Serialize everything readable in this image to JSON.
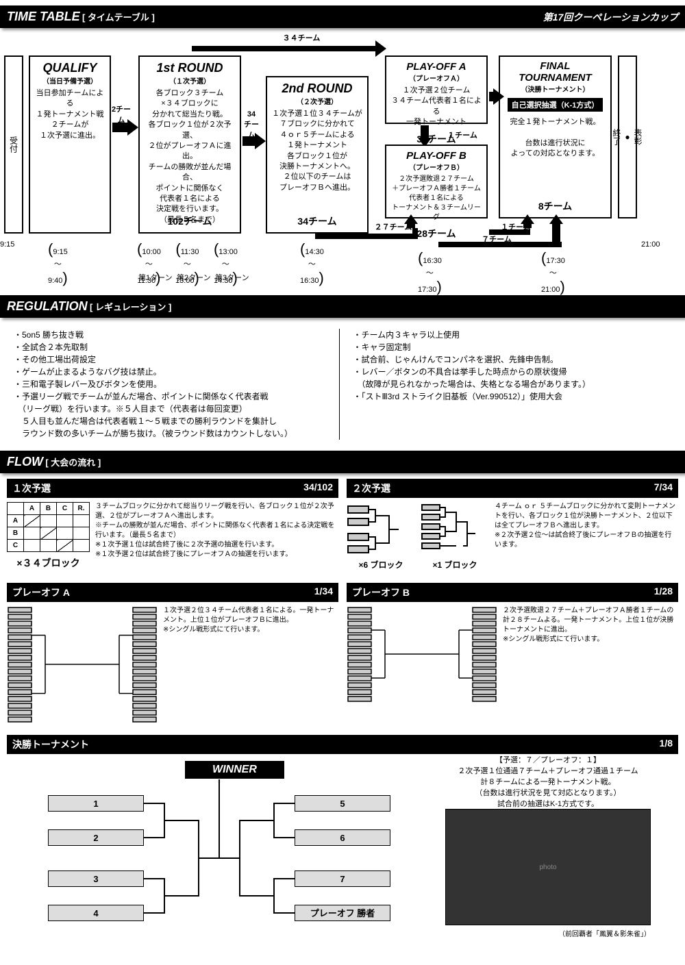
{
  "header1": {
    "en": "TIME TABLE",
    "jp": "[ タイムテーブル ]",
    "right": "第17回クーペレーションカップ"
  },
  "header2": {
    "en": "REGULATION",
    "jp": "[ レギュレーション ]"
  },
  "header3": {
    "en": "FLOW",
    "jp": "[ 大会の流れ ]"
  },
  "reception": "受付",
  "awards": "表彰\n●\n終了",
  "boxes": {
    "qualify": {
      "title": "QUALIFY",
      "sub": "（当日予備予選）",
      "body": "当日参加チームによる\n１発トーナメント戦\n２チームが\n１次予選に進出。"
    },
    "round1": {
      "title": "1st ROUND",
      "sub": "（１次予選）",
      "body": "各ブロック３チーム\n×３４ブロックに\n分かれて総当たり戦。\n各ブロック１位が２次予選、\n２位がプレーオフＡに進出。\nチームの勝敗が並んだ場合、\nポイントに関係なく\n代表者１名による\n決定戦を行います。\n（最長５名まで）",
      "footer": "102チーム"
    },
    "round2": {
      "title": "2nd ROUND",
      "sub": "（２次予選）",
      "body": "１次予選１位３４チームが\n７ブロックに分かれて\n４ｏｒ５チームによる\n１発トーナメント\n各ブロック１位が\n決勝トーナメントへ。\n２位以下のチームは\nプレーオフＢへ進出。",
      "footer": "34チーム"
    },
    "playoffA": {
      "title": "PLAY-OFF A",
      "sub": "（プレーオフＡ）",
      "body": "１次予選２位チーム\n３４チーム代表者１名による\n一発トーナメント",
      "footer": "34チーム"
    },
    "playoffB": {
      "title": "PLAY-OFF B",
      "sub": "（プレーオフＢ）",
      "body": "２次予選敗退２７チーム\n＋プレーオフＡ勝者１チーム\n代表者１名による\nトーナメント＆３チームリーグ",
      "footer": "28チーム"
    },
    "final": {
      "title": "FINAL TOURNAMENT",
      "sub": "（決勝トーナメント）",
      "pill": "自己選択抽選（K-1方式）",
      "body": "完全１発トーナメント戦。\n\n台数は進行状況に\nよっての対応となります。",
      "footer": "8チーム"
    }
  },
  "flow_labels": {
    "top34": "３４チーム",
    "mid34": "34\nチーム",
    "mid2": "2チーム",
    "one": "１チーム",
    "twentyseven": "２７チーム",
    "seven": "７チーム"
  },
  "times": {
    "t915": "9:15",
    "t915b": "9:15\n〜\n9:40",
    "t1000": "10:00\n〜\n11:30",
    "t1130": "11:30\n〜\n13:00",
    "t1300": "13:00\n〜\n14:30",
    "turn1": "第1ターン",
    "turn2": "第2ターン",
    "turn3": "第3ターン",
    "t1430": "14:30\n〜\n16:30",
    "t1630": "16:30\n〜\n17:30",
    "t1730": "17:30\n〜\n21:00",
    "t2100": "21:00"
  },
  "regulations": {
    "left": "・5on5 勝ち抜き戦\n・全試合２本先取制\n・その他工場出荷設定\n・ゲームが止まるようなバグ技は禁止。\n・三和電子製レバー及びボタンを使用。\n・予選リーグ戦でチームが並んだ場合、ポイントに関係なく代表者戦\n　（リーグ戦）を行います。※５人目まで（代表者は毎回変更）\n　５人目も並んだ場合は代表者戦１〜５戦までの勝利ラウンドを集計し\n　ラウンド数の多いチームが勝ち抜け。（被ラウンド数はカウントしない。）",
    "right": "・チーム内３キャラ以上使用\n・キャラ固定制\n・試合前、じゃんけんでコンパネを選択、先鋒申告制。\n・レバー／ボタンの不具合は挙手した時点からの原状復帰\n　（故障が見られなかった場合は、失格となる場合があります。）\n・「ストⅢ3rd ストライク旧基板（Ver.990512）」使用大会"
  },
  "flow": {
    "s1": {
      "title": "１次予選",
      "ratio": "34/102",
      "caption": "×３４ブロック",
      "text": "３チームブロックに分かれて総当りリーグ戦を行い、各ブロック１位が２次予選、２位がプレーオフＡへ進出します。\n※チームの勝敗が並んだ場合、ポイントに関係なく代表者１名による決定戦を行います。（最長５名まで）\n※１次予選１位は試合終了後に２次予選の抽選を行います。\n※１次予選２位は試合終了後にプレーオフＡの抽選を行います。",
      "tbl_headers": [
        "",
        "A",
        "B",
        "C",
        "R."
      ],
      "tbl_rows": [
        "A",
        "B",
        "C"
      ]
    },
    "s2": {
      "title": "２次予選",
      "ratio": "7/34",
      "cap6": "×6 ブロック",
      "cap1": "×1 ブロック",
      "text": "４チーム ｏｒ ５チームブロックに分かれて変則トーナメントを行い、各ブロック１位が決勝トーナメント、２位以下は全てプレーオフＢへ進出します。\n※２次予選２位〜は試合終了後にプレーオフＢの抽選を行います。"
    },
    "pA": {
      "title": "プレーオフ A",
      "ratio": "1/34",
      "text": "１次予選２位３４チーム代表者１名による。一発トーナメント。上位１位がプレーオフＢに進出。\n※シングル戦形式にて行います。"
    },
    "pB": {
      "title": "プレーオフ B",
      "ratio": "1/28",
      "text": "２次予選敗退２７チーム＋プレーオフＡ勝者１チームの計２８チームよる。一発トーナメント。上位１位が決勝トーナメントに進出。\n※シングル戦形式にて行います。"
    },
    "final": {
      "title": "決勝トーナメント",
      "ratio": "1/8",
      "text": "【予選：７／プレーオフ：１】\n２次予選１位通過７チーム＋プレーオフ通過１チーム\n計８チームによる一発トーナメント戦。\n（台数は進行状況を見て対応となります。）\n試合前の抽選はK-1方式です。",
      "slots": [
        "1",
        "2",
        "3",
        "4",
        "5",
        "6",
        "7",
        "プレーオフ 勝者"
      ],
      "winner": "WINNER",
      "photo_caption": "（前回覇者「鳳翼＆影朱雀」）"
    }
  }
}
